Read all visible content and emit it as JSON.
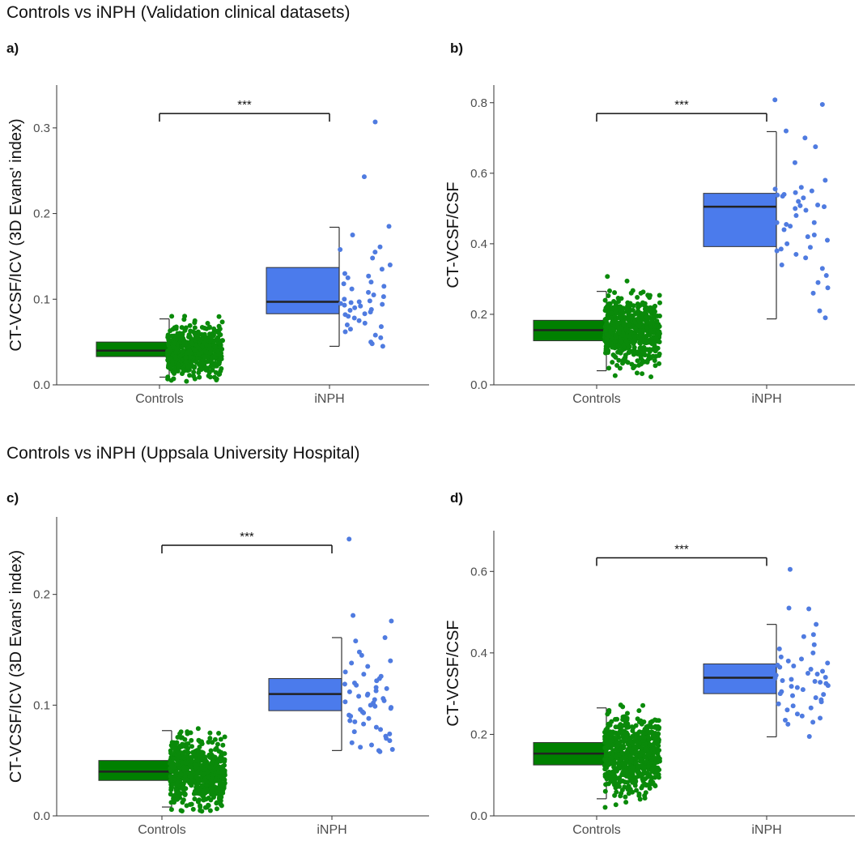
{
  "figure": {
    "section_titles": [
      "Controls vs iNPH (Validation clinical datasets)",
      "Controls vs iNPH (Uppsala University Hospital)"
    ],
    "control_color": "#008000",
    "inph_color": "#4b7bec",
    "control_point_color": "#0a8a0a",
    "inph_point_color": "#4f7be0",
    "significance": "***"
  },
  "chart_data": [
    {
      "panel": "a)",
      "type": "box+scatter",
      "categories": [
        "Controls",
        "iNPH"
      ],
      "ylabel": "CT-VCSF/ICV (3D Evans' index)",
      "ylim": [
        0,
        0.35
      ],
      "yticks": [
        0.0,
        0.1,
        0.2,
        0.3
      ],
      "ytick_labels": [
        "0.0",
        "0.1",
        "0.2",
        "0.3"
      ],
      "boxes": [
        {
          "name": "Controls",
          "q1": 0.033,
          "median": 0.04,
          "q3": 0.05,
          "whisker_low": 0.009,
          "whisker_high": 0.077
        },
        {
          "name": "iNPH",
          "q1": 0.083,
          "median": 0.097,
          "q3": 0.137,
          "whisker_low": 0.045,
          "whisker_high": 0.184
        }
      ],
      "points": {
        "Controls": {
          "n": 600,
          "center": 0.04,
          "min": 0.004,
          "max": 0.093
        },
        "iNPH": [
          0.307,
          0.243,
          0.185,
          0.175,
          0.161,
          0.158,
          0.155,
          0.148,
          0.14,
          0.135,
          0.13,
          0.127,
          0.125,
          0.12,
          0.118,
          0.115,
          0.112,
          0.108,
          0.105,
          0.103,
          0.1,
          0.098,
          0.097,
          0.096,
          0.095,
          0.094,
          0.093,
          0.092,
          0.09,
          0.088,
          0.087,
          0.085,
          0.083,
          0.082,
          0.08,
          0.078,
          0.075,
          0.072,
          0.07,
          0.068,
          0.065,
          0.062,
          0.058,
          0.055,
          0.05,
          0.048,
          0.045
        ]
      },
      "grid": false
    },
    {
      "panel": "b)",
      "type": "box+scatter",
      "categories": [
        "Controls",
        "iNPH"
      ],
      "ylabel": "CT-VCSF/CSF",
      "ylim": [
        0,
        0.85
      ],
      "yticks": [
        0.0,
        0.2,
        0.4,
        0.6,
        0.8
      ],
      "ytick_labels": [
        "0.0",
        "0.2",
        "0.4",
        "0.6",
        "0.8"
      ],
      "boxes": [
        {
          "name": "Controls",
          "q1": 0.125,
          "median": 0.155,
          "q3": 0.183,
          "whisker_low": 0.04,
          "whisker_high": 0.265
        },
        {
          "name": "iNPH",
          "q1": 0.392,
          "median": 0.505,
          "q3": 0.543,
          "whisker_low": 0.187,
          "whisker_high": 0.718
        }
      ],
      "points": {
        "Controls": {
          "n": 600,
          "center": 0.155,
          "min": 0.02,
          "max": 0.32
        },
        "iNPH": [
          0.808,
          0.795,
          0.72,
          0.7,
          0.675,
          0.63,
          0.58,
          0.56,
          0.555,
          0.55,
          0.545,
          0.54,
          0.538,
          0.535,
          0.53,
          0.52,
          0.51,
          0.508,
          0.505,
          0.5,
          0.495,
          0.48,
          0.46,
          0.46,
          0.455,
          0.45,
          0.44,
          0.425,
          0.42,
          0.41,
          0.4,
          0.39,
          0.385,
          0.38,
          0.37,
          0.36,
          0.34,
          0.33,
          0.31,
          0.29,
          0.275,
          0.26,
          0.21,
          0.19
        ]
      },
      "grid": false
    },
    {
      "panel": "c)",
      "type": "box+scatter",
      "categories": [
        "Controls",
        "iNPH"
      ],
      "ylabel": "CT-VCSF/ICV (3D Evans' index)",
      "ylim": [
        0,
        0.27
      ],
      "yticks": [
        0.0,
        0.1,
        0.2
      ],
      "ytick_labels": [
        "0.0",
        "0.1",
        "0.2"
      ],
      "boxes": [
        {
          "name": "Controls",
          "q1": 0.032,
          "median": 0.04,
          "q3": 0.05,
          "whisker_low": 0.008,
          "whisker_high": 0.077
        },
        {
          "name": "iNPH",
          "q1": 0.095,
          "median": 0.11,
          "q3": 0.124,
          "whisker_low": 0.059,
          "whisker_high": 0.161
        }
      ],
      "points": {
        "Controls": {
          "n": 600,
          "center": 0.04,
          "min": 0.004,
          "max": 0.094
        },
        "iNPH": [
          0.25,
          0.181,
          0.176,
          0.161,
          0.158,
          0.148,
          0.145,
          0.14,
          0.138,
          0.135,
          0.13,
          0.128,
          0.126,
          0.124,
          0.122,
          0.12,
          0.119,
          0.118,
          0.116,
          0.115,
          0.113,
          0.112,
          0.11,
          0.109,
          0.108,
          0.106,
          0.105,
          0.104,
          0.103,
          0.102,
          0.1,
          0.099,
          0.098,
          0.097,
          0.096,
          0.094,
          0.093,
          0.091,
          0.09,
          0.088,
          0.086,
          0.085,
          0.083,
          0.08,
          0.078,
          0.076,
          0.074,
          0.072,
          0.07,
          0.068,
          0.066,
          0.064,
          0.062,
          0.06,
          0.059,
          0.058
        ]
      },
      "grid": false
    },
    {
      "panel": "d)",
      "type": "box+scatter",
      "categories": [
        "Controls",
        "iNPH"
      ],
      "ylabel": "CT-VCSF/CSF",
      "ylim": [
        0,
        0.7
      ],
      "yticks": [
        0.0,
        0.2,
        0.4,
        0.6
      ],
      "ytick_labels": [
        "0.0",
        "0.2",
        "0.4",
        "0.6"
      ],
      "boxes": [
        {
          "name": "Controls",
          "q1": 0.125,
          "median": 0.153,
          "q3": 0.18,
          "whisker_low": 0.042,
          "whisker_high": 0.265
        },
        {
          "name": "iNPH",
          "q1": 0.3,
          "median": 0.339,
          "q3": 0.373,
          "whisker_low": 0.194,
          "whisker_high": 0.47
        }
      ],
      "points": {
        "Controls": {
          "n": 600,
          "center": 0.153,
          "min": 0.015,
          "max": 0.32
        },
        "iNPH": [
          0.605,
          0.51,
          0.508,
          0.47,
          0.445,
          0.44,
          0.42,
          0.41,
          0.4,
          0.39,
          0.385,
          0.38,
          0.375,
          0.37,
          0.368,
          0.365,
          0.36,
          0.355,
          0.35,
          0.348,
          0.345,
          0.34,
          0.338,
          0.335,
          0.332,
          0.33,
          0.328,
          0.325,
          0.32,
          0.318,
          0.315,
          0.31,
          0.305,
          0.3,
          0.298,
          0.295,
          0.29,
          0.285,
          0.28,
          0.275,
          0.27,
          0.265,
          0.26,
          0.25,
          0.245,
          0.24,
          0.235,
          0.23,
          0.225,
          0.195
        ]
      },
      "grid": false
    }
  ]
}
